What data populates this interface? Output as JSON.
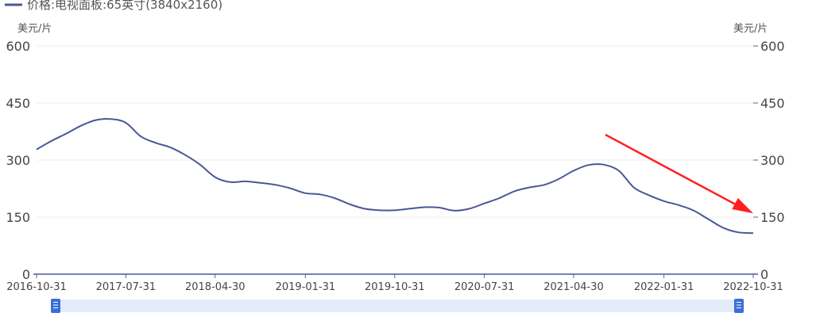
{
  "chart_data": {
    "type": "line",
    "series": [
      {
        "name": "价格:电视面板:65英寸(3840x2160)",
        "color": "#4a5796",
        "points": [
          [
            "2016-10-31",
            328
          ],
          [
            "2016-12-15",
            350
          ],
          [
            "2017-01-31",
            370
          ],
          [
            "2017-03-15",
            390
          ],
          [
            "2017-04-30",
            405
          ],
          [
            "2017-06-15",
            408
          ],
          [
            "2017-07-31",
            398
          ],
          [
            "2017-09-15",
            362
          ],
          [
            "2017-10-31",
            345
          ],
          [
            "2017-12-15",
            333
          ],
          [
            "2018-01-31",
            312
          ],
          [
            "2018-03-15",
            288
          ],
          [
            "2018-04-30",
            255
          ],
          [
            "2018-06-15",
            242
          ],
          [
            "2018-07-31",
            244
          ],
          [
            "2018-09-15",
            240
          ],
          [
            "2018-10-31",
            235
          ],
          [
            "2018-12-15",
            226
          ],
          [
            "2019-01-31",
            213
          ],
          [
            "2019-03-15",
            210
          ],
          [
            "2019-04-30",
            200
          ],
          [
            "2019-06-15",
            184
          ],
          [
            "2019-07-31",
            172
          ],
          [
            "2019-09-15",
            168
          ],
          [
            "2019-10-31",
            168
          ],
          [
            "2019-12-15",
            172
          ],
          [
            "2020-01-31",
            176
          ],
          [
            "2020-03-15",
            175
          ],
          [
            "2020-04-30",
            167
          ],
          [
            "2020-06-15",
            172
          ],
          [
            "2020-07-31",
            186
          ],
          [
            "2020-09-15",
            200
          ],
          [
            "2020-10-31",
            218
          ],
          [
            "2020-12-15",
            228
          ],
          [
            "2021-01-31",
            235
          ],
          [
            "2021-03-15",
            250
          ],
          [
            "2021-04-30",
            272
          ],
          [
            "2021-06-15",
            287
          ],
          [
            "2021-07-31",
            288
          ],
          [
            "2021-09-15",
            272
          ],
          [
            "2021-10-31",
            228
          ],
          [
            "2021-12-15",
            208
          ],
          [
            "2022-01-31",
            192
          ],
          [
            "2022-03-15",
            182
          ],
          [
            "2022-04-30",
            168
          ],
          [
            "2022-06-15",
            145
          ],
          [
            "2022-07-31",
            122
          ],
          [
            "2022-09-15",
            110
          ],
          [
            "2022-10-31",
            108
          ]
        ]
      }
    ],
    "x_ticks": [
      "2016-10-31",
      "2017-07-31",
      "2018-04-30",
      "2019-01-31",
      "2019-10-31",
      "2020-07-31",
      "2021-04-30",
      "2022-01-31",
      "2022-10-31"
    ],
    "y_ticks": [
      0,
      150,
      300,
      450,
      600
    ],
    "ylim": [
      0,
      600
    ],
    "ylabel_left": "美元/片",
    "ylabel_right": "美元/片",
    "grid": true,
    "legend_position": "top-left",
    "annotation": {
      "type": "arrow",
      "color": "#ff2020",
      "target": [
        "2022-10-31",
        160
      ]
    },
    "data_zoom": {
      "handle_color": "#3b6fd6",
      "bar_color": "#e3ebf9"
    }
  }
}
